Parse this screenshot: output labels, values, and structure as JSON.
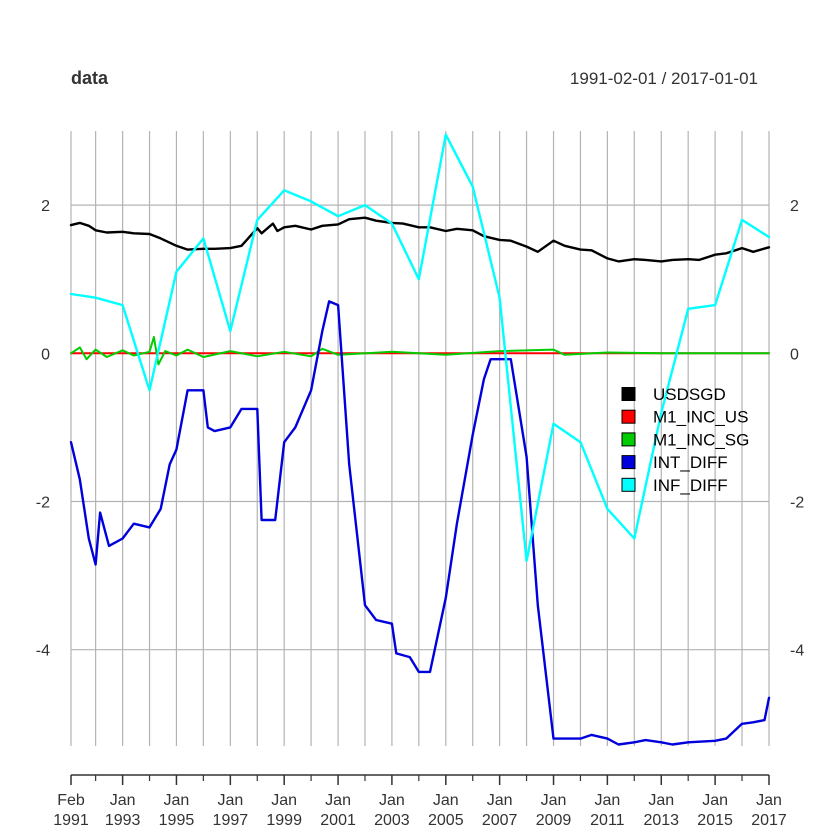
{
  "chart_data": {
    "type": "line",
    "title": "data",
    "subtitle": "1991-02-01 / 2017-01-01",
    "x_range": [
      "1991-02-01",
      "2017-01-01"
    ],
    "ylim": [
      -5.3,
      3.0
    ],
    "y_ticks": [
      2,
      0,
      -2,
      -4
    ],
    "grid": true,
    "legend_position": "right",
    "x_ticks": [
      {
        "date": "1991-02-01",
        "line1": "Feb",
        "line2": "1991"
      },
      {
        "date": "1993-01-01",
        "line1": "Jan",
        "line2": "1993"
      },
      {
        "date": "1995-01-01",
        "line1": "Jan",
        "line2": "1995"
      },
      {
        "date": "1997-01-01",
        "line1": "Jan",
        "line2": "1997"
      },
      {
        "date": "1999-01-01",
        "line1": "Jan",
        "line2": "1999"
      },
      {
        "date": "2001-01-01",
        "line1": "Jan",
        "line2": "2001"
      },
      {
        "date": "2003-01-01",
        "line1": "Jan",
        "line2": "2003"
      },
      {
        "date": "2005-01-01",
        "line1": "Jan",
        "line2": "2005"
      },
      {
        "date": "2007-01-01",
        "line1": "Jan",
        "line2": "2007"
      },
      {
        "date": "2009-01-01",
        "line1": "Jan",
        "line2": "2009"
      },
      {
        "date": "2011-01-01",
        "line1": "Jan",
        "line2": "2011"
      },
      {
        "date": "2013-01-01",
        "line1": "Jan",
        "line2": "2013"
      },
      {
        "date": "2015-01-01",
        "line1": "Jan",
        "line2": "2015"
      },
      {
        "date": "2017-01-01",
        "line1": "Jan",
        "line2": "2017"
      }
    ],
    "minor_grid_dates": [
      "1992-01-01",
      "1994-01-01",
      "1996-01-01",
      "1998-01-01",
      "2000-01-01",
      "2002-01-01",
      "2004-01-01",
      "2006-01-01",
      "2008-01-01",
      "2010-01-01",
      "2012-01-01",
      "2014-01-01",
      "2016-01-01"
    ],
    "series": [
      {
        "name": "USDSGD",
        "color": "#000000",
        "points": [
          [
            "1991-02-01",
            1.73
          ],
          [
            "1991-06-01",
            1.76
          ],
          [
            "1991-10-01",
            1.72
          ],
          [
            "1992-01-01",
            1.66
          ],
          [
            "1992-06-01",
            1.63
          ],
          [
            "1993-01-01",
            1.64
          ],
          [
            "1993-06-01",
            1.62
          ],
          [
            "1994-01-01",
            1.61
          ],
          [
            "1994-06-01",
            1.55
          ],
          [
            "1995-01-01",
            1.45
          ],
          [
            "1995-06-01",
            1.4
          ],
          [
            "1996-01-01",
            1.41
          ],
          [
            "1996-06-01",
            1.41
          ],
          [
            "1997-01-01",
            1.42
          ],
          [
            "1997-06-01",
            1.45
          ],
          [
            "1998-01-01",
            1.69
          ],
          [
            "1998-03-01",
            1.62
          ],
          [
            "1998-08-01",
            1.75
          ],
          [
            "1998-10-01",
            1.65
          ],
          [
            "1999-01-01",
            1.7
          ],
          [
            "1999-06-01",
            1.72
          ],
          [
            "2000-01-01",
            1.67
          ],
          [
            "2000-06-01",
            1.72
          ],
          [
            "2001-01-01",
            1.74
          ],
          [
            "2001-06-01",
            1.81
          ],
          [
            "2002-01-01",
            1.83
          ],
          [
            "2002-06-01",
            1.79
          ],
          [
            "2003-01-01",
            1.76
          ],
          [
            "2003-06-01",
            1.75
          ],
          [
            "2004-01-01",
            1.7
          ],
          [
            "2004-06-01",
            1.7
          ],
          [
            "2005-01-01",
            1.65
          ],
          [
            "2005-06-01",
            1.68
          ],
          [
            "2006-01-01",
            1.66
          ],
          [
            "2006-06-01",
            1.58
          ],
          [
            "2007-01-01",
            1.53
          ],
          [
            "2007-06-01",
            1.52
          ],
          [
            "2008-01-01",
            1.44
          ],
          [
            "2008-06-01",
            1.37
          ],
          [
            "2009-01-01",
            1.52
          ],
          [
            "2009-06-01",
            1.45
          ],
          [
            "2010-01-01",
            1.4
          ],
          [
            "2010-06-01",
            1.39
          ],
          [
            "2011-01-01",
            1.28
          ],
          [
            "2011-06-01",
            1.24
          ],
          [
            "2012-01-01",
            1.27
          ],
          [
            "2012-06-01",
            1.26
          ],
          [
            "2013-01-01",
            1.24
          ],
          [
            "2013-06-01",
            1.26
          ],
          [
            "2014-01-01",
            1.27
          ],
          [
            "2014-06-01",
            1.26
          ],
          [
            "2015-01-01",
            1.33
          ],
          [
            "2015-06-01",
            1.35
          ],
          [
            "2016-01-01",
            1.42
          ],
          [
            "2016-06-01",
            1.37
          ],
          [
            "2017-01-01",
            1.43
          ]
        ]
      },
      {
        "name": "M1_INC_US",
        "color": "#ff0000",
        "points": [
          [
            "1991-02-01",
            0.0
          ],
          [
            "1993-01-01",
            0.0
          ],
          [
            "1995-01-01",
            0.0
          ],
          [
            "1997-01-01",
            0.0
          ],
          [
            "1999-01-01",
            0.0
          ],
          [
            "2001-01-01",
            0.0
          ],
          [
            "2003-01-01",
            0.0
          ],
          [
            "2005-01-01",
            0.0
          ],
          [
            "2007-01-01",
            0.0
          ],
          [
            "2009-01-01",
            0.0
          ],
          [
            "2011-01-01",
            0.0
          ],
          [
            "2013-01-01",
            0.0
          ],
          [
            "2015-01-01",
            0.0
          ],
          [
            "2017-01-01",
            0.0
          ]
        ]
      },
      {
        "name": "M1_INC_SG",
        "color": "#00cc00",
        "points": [
          [
            "1991-02-01",
            0.0
          ],
          [
            "1991-06-01",
            0.08
          ],
          [
            "1991-09-01",
            -0.08
          ],
          [
            "1992-01-01",
            0.05
          ],
          [
            "1992-06-01",
            -0.05
          ],
          [
            "1993-01-01",
            0.04
          ],
          [
            "1993-06-01",
            -0.03
          ],
          [
            "1994-01-01",
            0.02
          ],
          [
            "1994-03-01",
            0.22
          ],
          [
            "1994-05-01",
            -0.15
          ],
          [
            "1994-08-01",
            0.03
          ],
          [
            "1995-01-01",
            -0.03
          ],
          [
            "1995-06-01",
            0.05
          ],
          [
            "1996-01-01",
            -0.05
          ],
          [
            "1997-01-01",
            0.03
          ],
          [
            "1998-01-01",
            -0.04
          ],
          [
            "1999-01-01",
            0.02
          ],
          [
            "2000-01-01",
            -0.04
          ],
          [
            "2000-06-01",
            0.06
          ],
          [
            "2001-01-01",
            -0.02
          ],
          [
            "2003-01-01",
            0.02
          ],
          [
            "2005-01-01",
            -0.02
          ],
          [
            "2007-01-01",
            0.03
          ],
          [
            "2009-01-01",
            0.05
          ],
          [
            "2009-06-01",
            -0.02
          ],
          [
            "2011-01-01",
            0.01
          ],
          [
            "2013-01-01",
            0.0
          ],
          [
            "2017-01-01",
            0.0
          ]
        ]
      },
      {
        "name": "INT_DIFF",
        "color": "#0000dd",
        "points": [
          [
            "1991-02-01",
            -1.2
          ],
          [
            "1991-06-01",
            -1.7
          ],
          [
            "1991-10-01",
            -2.5
          ],
          [
            "1992-01-01",
            -2.85
          ],
          [
            "1992-03-01",
            -2.15
          ],
          [
            "1992-07-01",
            -2.6
          ],
          [
            "1993-01-01",
            -2.5
          ],
          [
            "1993-06-01",
            -2.3
          ],
          [
            "1994-01-01",
            -2.35
          ],
          [
            "1994-06-01",
            -2.1
          ],
          [
            "1994-10-01",
            -1.5
          ],
          [
            "1995-01-01",
            -1.3
          ],
          [
            "1995-06-01",
            -0.5
          ],
          [
            "1996-01-01",
            -0.5
          ],
          [
            "1996-03-01",
            -1.0
          ],
          [
            "1996-06-01",
            -1.05
          ],
          [
            "1997-01-01",
            -1.0
          ],
          [
            "1997-06-01",
            -0.75
          ],
          [
            "1998-01-01",
            -0.75
          ],
          [
            "1998-03-01",
            -2.25
          ],
          [
            "1998-09-01",
            -2.25
          ],
          [
            "1999-01-01",
            -1.2
          ],
          [
            "1999-06-01",
            -1.0
          ],
          [
            "2000-01-01",
            -0.5
          ],
          [
            "2000-06-01",
            0.3
          ],
          [
            "2000-09-01",
            0.7
          ],
          [
            "2001-01-01",
            0.65
          ],
          [
            "2001-06-01",
            -1.5
          ],
          [
            "2002-01-01",
            -3.4
          ],
          [
            "2002-06-01",
            -3.6
          ],
          [
            "2003-01-01",
            -3.65
          ],
          [
            "2003-03-01",
            -4.05
          ],
          [
            "2003-09-01",
            -4.1
          ],
          [
            "2004-01-01",
            -4.3
          ],
          [
            "2004-06-01",
            -4.3
          ],
          [
            "2005-01-01",
            -3.3
          ],
          [
            "2005-06-01",
            -2.3
          ],
          [
            "2006-01-01",
            -1.1
          ],
          [
            "2006-06-01",
            -0.35
          ],
          [
            "2006-09-01",
            -0.08
          ],
          [
            "2007-06-01",
            -0.08
          ],
          [
            "2008-01-01",
            -1.4
          ],
          [
            "2008-06-01",
            -3.4
          ],
          [
            "2009-01-01",
            -5.2
          ],
          [
            "2010-01-01",
            -5.2
          ],
          [
            "2010-06-01",
            -5.15
          ],
          [
            "2011-01-01",
            -5.2
          ],
          [
            "2011-06-01",
            -5.28
          ],
          [
            "2012-01-01",
            -5.25
          ],
          [
            "2012-06-01",
            -5.22
          ],
          [
            "2013-01-01",
            -5.25
          ],
          [
            "2013-06-01",
            -5.28
          ],
          [
            "2014-01-01",
            -5.25
          ],
          [
            "2015-01-01",
            -5.23
          ],
          [
            "2015-06-01",
            -5.2
          ],
          [
            "2016-01-01",
            -5.0
          ],
          [
            "2016-06-01",
            -4.98
          ],
          [
            "2016-11-01",
            -4.95
          ],
          [
            "2017-01-01",
            -4.65
          ]
        ]
      },
      {
        "name": "INF_DIFF",
        "color": "#00ffff",
        "points": [
          [
            "1991-02-01",
            0.8
          ],
          [
            "1992-01-01",
            0.75
          ],
          [
            "1993-01-01",
            0.65
          ],
          [
            "1994-01-01",
            -0.5
          ],
          [
            "1995-01-01",
            1.1
          ],
          [
            "1996-01-01",
            1.55
          ],
          [
            "1997-01-01",
            0.3
          ],
          [
            "1998-01-01",
            1.8
          ],
          [
            "1999-01-01",
            2.2
          ],
          [
            "2000-01-01",
            2.05
          ],
          [
            "2001-01-01",
            1.85
          ],
          [
            "2002-01-01",
            2.0
          ],
          [
            "2003-01-01",
            1.75
          ],
          [
            "2004-01-01",
            1.0
          ],
          [
            "2005-01-01",
            2.95
          ],
          [
            "2006-01-01",
            2.25
          ],
          [
            "2007-01-01",
            0.75
          ],
          [
            "2008-01-01",
            -2.8
          ],
          [
            "2009-01-01",
            -0.95
          ],
          [
            "2010-01-01",
            -1.2
          ],
          [
            "2011-01-01",
            -2.1
          ],
          [
            "2012-01-01",
            -2.5
          ],
          [
            "2013-01-01",
            -0.8
          ],
          [
            "2014-01-01",
            0.6
          ],
          [
            "2015-01-01",
            0.65
          ],
          [
            "2016-01-01",
            1.8
          ],
          [
            "2017-01-01",
            1.57
          ]
        ]
      }
    ]
  }
}
